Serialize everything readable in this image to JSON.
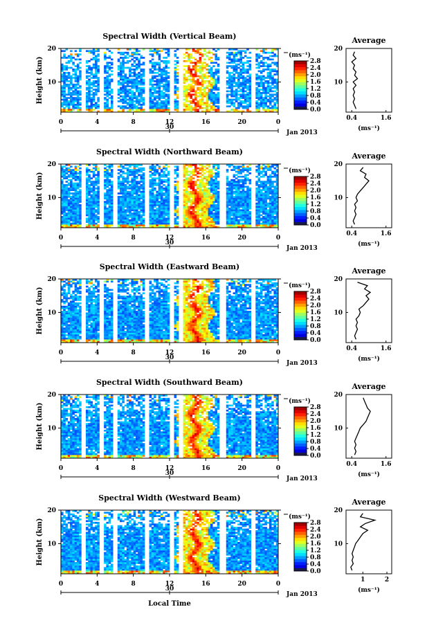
{
  "common": {
    "y_axis_label": "Height (km)",
    "unit_label": "(ms⁻¹)",
    "hour_ticks": [
      "0",
      "4",
      "8",
      "12",
      "16",
      "20",
      "0"
    ],
    "date_tick": "30",
    "date_suffix": "Jan 2013",
    "height_ticks": [
      "20",
      "10"
    ],
    "colorbar_ticks": [
      "2.8",
      "2.4",
      "2.0",
      "1.6",
      "1.2",
      "0.8",
      "0.4",
      "0.0"
    ],
    "x_axis_title": "Local Time",
    "avg_title": "Average",
    "avg_unit": "(ms⁻¹)"
  },
  "chart_data": [
    {
      "type": "heatmap",
      "title": "Spectral Width (Vertical Beam)",
      "xlabel": "",
      "ylabel": "Height (km)",
      "xlim": [
        0,
        24
      ],
      "ylim": [
        1,
        20
      ],
      "colorbar": {
        "label": "(ms⁻¹)",
        "range": [
          0.0,
          3.0
        ]
      },
      "average": {
        "title": "Average",
        "xlabel": "(ms⁻¹)",
        "xticks": [
          "0.4",
          "1.6"
        ],
        "xlim": [
          0.2,
          1.8
        ],
        "profile": [
          [
            0.55,
            2
          ],
          [
            0.5,
            3
          ],
          [
            0.45,
            4
          ],
          [
            0.5,
            5
          ],
          [
            0.45,
            6
          ],
          [
            0.5,
            7
          ],
          [
            0.45,
            8
          ],
          [
            0.55,
            9
          ],
          [
            0.45,
            10
          ],
          [
            0.6,
            11
          ],
          [
            0.5,
            12
          ],
          [
            0.55,
            13
          ],
          [
            0.45,
            14
          ],
          [
            0.5,
            15
          ],
          [
            0.4,
            16
          ],
          [
            0.55,
            17
          ],
          [
            0.45,
            18
          ],
          [
            0.5,
            19
          ]
        ]
      }
    },
    {
      "type": "heatmap",
      "title": "Spectral Width (Northward Beam)",
      "xlabel": "",
      "ylabel": "Height (km)",
      "xlim": [
        0,
        24
      ],
      "ylim": [
        1,
        20
      ],
      "colorbar": {
        "label": "(ms⁻¹)",
        "range": [
          0.0,
          3.0
        ]
      },
      "average": {
        "title": "Average",
        "xlabel": "(ms⁻¹)",
        "xticks": [
          "0.4",
          "1.6"
        ],
        "xlim": [
          0.2,
          1.8
        ],
        "profile": [
          [
            0.5,
            2
          ],
          [
            0.45,
            3
          ],
          [
            0.5,
            4
          ],
          [
            0.55,
            5
          ],
          [
            0.5,
            6
          ],
          [
            0.55,
            7
          ],
          [
            0.5,
            8
          ],
          [
            0.6,
            9
          ],
          [
            0.55,
            10
          ],
          [
            0.6,
            11
          ],
          [
            0.7,
            12
          ],
          [
            0.8,
            13
          ],
          [
            0.9,
            14
          ],
          [
            1.0,
            15
          ],
          [
            0.85,
            16
          ],
          [
            0.9,
            17
          ],
          [
            0.7,
            18
          ],
          [
            0.8,
            19
          ]
        ]
      }
    },
    {
      "type": "heatmap",
      "title": "Spectral Width (Eastward Beam)",
      "xlabel": "",
      "ylabel": "Height (km)",
      "xlim": [
        0,
        24
      ],
      "ylim": [
        1,
        20
      ],
      "colorbar": {
        "label": "(ms⁻¹)",
        "range": [
          0.0,
          3.0
        ]
      },
      "average": {
        "title": "Average",
        "xlabel": "(ms⁻¹)",
        "xticks": [
          "0.4",
          "1.6"
        ],
        "xlim": [
          0.2,
          1.8
        ],
        "profile": [
          [
            0.55,
            2
          ],
          [
            0.5,
            3
          ],
          [
            0.55,
            4
          ],
          [
            0.6,
            5
          ],
          [
            0.55,
            6
          ],
          [
            0.6,
            7
          ],
          [
            0.55,
            8
          ],
          [
            0.65,
            9
          ],
          [
            0.7,
            10
          ],
          [
            0.65,
            11
          ],
          [
            0.8,
            12
          ],
          [
            0.9,
            13
          ],
          [
            1.0,
            14
          ],
          [
            0.9,
            15
          ],
          [
            1.05,
            16
          ],
          [
            0.85,
            17
          ],
          [
            0.95,
            18
          ],
          [
            0.6,
            19
          ]
        ]
      }
    },
    {
      "type": "heatmap",
      "title": "Spectral Width (Southward Beam)",
      "xlabel": "",
      "ylabel": "Height (km)",
      "xlim": [
        0,
        24
      ],
      "ylim": [
        1,
        20
      ],
      "colorbar": {
        "label": "(ms⁻¹)",
        "range": [
          0.0,
          3.0
        ]
      },
      "average": {
        "title": "Average",
        "xlabel": "(ms⁻¹)",
        "xticks": [
          "0.4",
          "1.6"
        ],
        "xlim": [
          0.2,
          1.8
        ],
        "profile": [
          [
            0.5,
            2
          ],
          [
            0.55,
            3
          ],
          [
            0.5,
            4
          ],
          [
            0.55,
            5
          ],
          [
            0.5,
            6
          ],
          [
            0.55,
            7
          ],
          [
            0.6,
            8
          ],
          [
            0.65,
            9
          ],
          [
            0.7,
            10
          ],
          [
            0.8,
            11
          ],
          [
            0.9,
            12
          ],
          [
            0.95,
            13
          ],
          [
            1.0,
            14
          ],
          [
            1.05,
            15
          ],
          [
            0.95,
            16
          ],
          [
            0.9,
            17
          ],
          [
            0.85,
            18
          ],
          [
            0.8,
            19
          ]
        ]
      }
    },
    {
      "type": "heatmap",
      "title": "Spectral Width (Westward Beam)",
      "xlabel": "Local Time",
      "ylabel": "Height (km)",
      "xlim": [
        0,
        24
      ],
      "ylim": [
        1,
        20
      ],
      "colorbar": {
        "label": "(ms⁻¹)",
        "range": [
          0.0,
          3.0
        ]
      },
      "average": {
        "title": "Average",
        "xlabel": "(ms⁻¹)",
        "xticks": [
          "1",
          "2"
        ],
        "xlim": [
          0.3,
          2.2
        ],
        "profile": [
          [
            0.55,
            2
          ],
          [
            0.5,
            3
          ],
          [
            0.6,
            4
          ],
          [
            0.55,
            5
          ],
          [
            0.6,
            6
          ],
          [
            0.55,
            7
          ],
          [
            0.6,
            8
          ],
          [
            0.65,
            9
          ],
          [
            0.7,
            10
          ],
          [
            0.8,
            11
          ],
          [
            0.9,
            12
          ],
          [
            1.0,
            13
          ],
          [
            1.2,
            14
          ],
          [
            0.9,
            15
          ],
          [
            1.1,
            16
          ],
          [
            1.5,
            17
          ],
          [
            0.9,
            18
          ],
          [
            1.0,
            19
          ]
        ]
      }
    }
  ]
}
